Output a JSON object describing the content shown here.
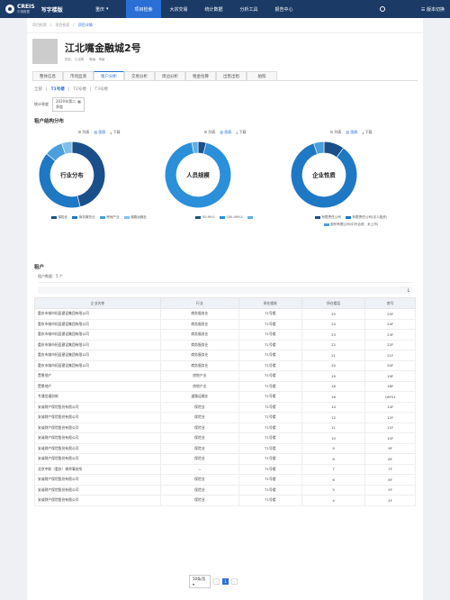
{
  "app": {
    "logo_text": "CREIS",
    "logo_sub": "中指数据",
    "product": "写字楼版",
    "city": "重庆"
  },
  "nav": [
    "项目检索",
    "大宗交易",
    "统计数据",
    "分析工具",
    "报告中心"
  ],
  "top_right": {
    "version_switch": "版本切换"
  },
  "breadcrumb": [
    "项目检索",
    "项目检索",
    "项目详情"
  ],
  "building": {
    "name": "江北嘴金融城2号",
    "meta_labels": [
      "别名：",
      "江北嘴",
      "等级：",
      "甲级"
    ]
  },
  "tabs": [
    "整体信息",
    "市场监测",
    "租户分析",
    "交易分析",
    "周边分析",
    "租金估算",
    "出售出租",
    "拍照"
  ],
  "active_tab": 2,
  "subtabs": [
    "全部",
    "T1号楼",
    "T2号楼",
    "T3号楼"
  ],
  "filter": {
    "label": "统计季度",
    "value": "2020年第二季度"
  },
  "section_title": "租户结构分布",
  "chart_tools": [
    "列表",
    "图表",
    "下载"
  ],
  "chart_data": [
    {
      "type": "pie",
      "title": "行业分布",
      "categories": [
        "保险业",
        "商务服务业",
        "房地产业",
        "道路运输业"
      ],
      "values": [
        46,
        40,
        9,
        5
      ],
      "colors": [
        "#1b4f8a",
        "#1f78c4",
        "#4a9fdc",
        "#7fbfea"
      ]
    },
    {
      "type": "pie",
      "title": "人员规模",
      "categories": [
        "50-99人",
        "100-499人",
        ""
      ],
      "values": [
        4,
        93,
        3
      ],
      "colors": [
        "#1b4f8a",
        "#2b8fd9",
        "#5bb0e8"
      ]
    },
    {
      "type": "pie",
      "title": "企业性质",
      "categories": [
        "有限责任公司",
        "有限责任公司(法人独资)",
        "股份有限公司(中外合资、未上市)"
      ],
      "values": [
        10,
        85,
        5
      ],
      "colors": [
        "#1b4f8a",
        "#1f78c4",
        "#4a9fdc"
      ]
    }
  ],
  "tenants": {
    "title": "租户",
    "count_label": "租户数量：",
    "count": "5 个",
    "columns": [
      "企业名称",
      "行业",
      "所在楼栋",
      "所在楼层",
      "房号"
    ],
    "rows": [
      [
        "重庆市城市拓居建设集团有限公司",
        "商务服务业",
        "T1号楼",
        "25",
        "25F"
      ],
      [
        "重庆市城市拓居建设集团有限公司",
        "商务服务业",
        "T1号楼",
        "24",
        "24F"
      ],
      [
        "重庆市城市拓居建设集团有限公司",
        "商务服务业",
        "T1号楼",
        "23",
        "23F"
      ],
      [
        "重庆市城市拓居建设集团有限公司",
        "商务服务业",
        "T1号楼",
        "22",
        "22F"
      ],
      [
        "重庆市城市拓居建设集团有限公司",
        "商务服务业",
        "T1号楼",
        "21",
        "21F"
      ],
      [
        "重庆市城市拓居建设集团有限公司",
        "商务服务业",
        "T1号楼",
        "20",
        "20F"
      ],
      [
        "置景地产",
        "房地产业",
        "T1号楼",
        "19",
        "19F"
      ],
      [
        "置景地产",
        "房地产业",
        "T1号楼",
        "18",
        "18F"
      ],
      [
        "专通信通创新",
        "道路运输业",
        "T1号楼",
        "16",
        "16F01"
      ],
      [
        "安诚财产保险股份有限公司",
        "保险业",
        "T1号楼",
        "14",
        "14F"
      ],
      [
        "安诚财产保险股份有限公司",
        "保险业",
        "T1号楼",
        "12",
        "12F"
      ],
      [
        "安诚财产保险股份有限公司",
        "保险业",
        "T1号楼",
        "11",
        "11F"
      ],
      [
        "安诚财产保险股份有限公司",
        "保险业",
        "T1号楼",
        "10",
        "10F"
      ],
      [
        "安诚财产保险股份有限公司",
        "保险业",
        "T1号楼",
        "9",
        "9F"
      ],
      [
        "安诚财产保险股份有限公司",
        "保险业",
        "T1号楼",
        "8",
        "8F"
      ],
      [
        "北京中联（重庆）律师事务所",
        "—",
        "T1号楼",
        "7",
        "7F"
      ],
      [
        "安诚财产保险股份有限公司",
        "保险业",
        "T1号楼",
        "6",
        "6F"
      ],
      [
        "安诚财产保险股份有限公司",
        "保险业",
        "T1号楼",
        "5",
        "5F"
      ],
      [
        "安诚财产保险股份有限公司",
        "保险业",
        "T1号楼",
        "4",
        "4F"
      ]
    ]
  },
  "pager": {
    "page_size": "50条/页",
    "current": "1"
  }
}
